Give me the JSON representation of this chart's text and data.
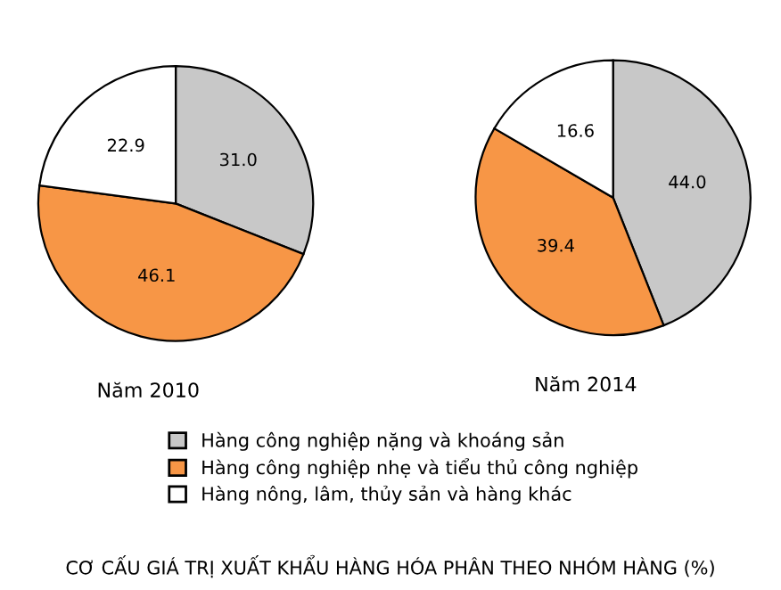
{
  "chart_data": [
    {
      "type": "pie",
      "title": "Năm 2010",
      "categories": [
        "Hàng công nghiệp nặng và khoáng sản",
        "Hàng công nghiệp nhẹ và tiểu thủ công nghiệp",
        "Hàng nông, lâm, thủy sản và hàng khác"
      ],
      "values": [
        31.0,
        46.1,
        22.9
      ],
      "colors": [
        "#c8c8c8",
        "#f79646",
        "#ffffff"
      ],
      "value_labels": [
        "31.0",
        "46.1",
        "22.9"
      ],
      "legend": "bottom"
    },
    {
      "type": "pie",
      "title": "Năm 2014",
      "categories": [
        null,
        null,
        null
      ],
      "values": [
        44.0,
        39.4,
        16.6
      ],
      "colors": [
        "#c8c8c8",
        "#f79646",
        "#ffffff"
      ],
      "value_labels": [
        "44.0",
        "39.4",
        "16.6"
      ],
      "annotations": [
        "CƠ CẤU GIÁ TRỊ XUẤT KHẨU HÀNG HÓA PHÂN THEO NHÓM HÀNG (%)"
      ]
    }
  ]
}
